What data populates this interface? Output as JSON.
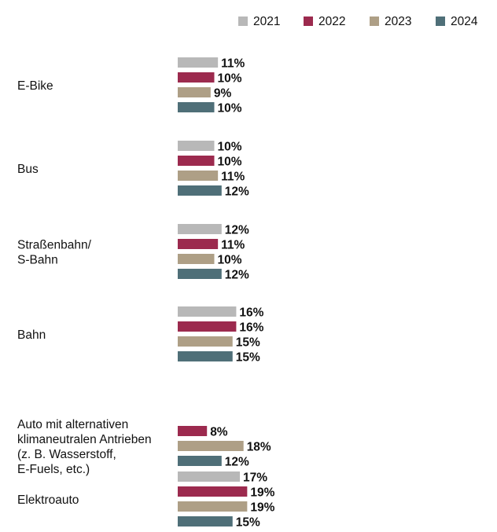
{
  "chart_data": {
    "type": "bar",
    "orientation": "horizontal",
    "legend_position": "top-right",
    "grid": false,
    "categories": [
      [
        "E-Bike"
      ],
      [
        "Bus"
      ],
      [
        "Straßenbahn/",
        "S-Bahn"
      ],
      [
        "Bahn"
      ],
      [
        "Auto mit alternativen",
        "klimaneutralen Antrieben",
        "(z. B. Wasserstoff,",
        "E-Fuels, etc.)"
      ],
      [
        "Elektroauto"
      ]
    ],
    "series": [
      {
        "name": "2021",
        "color": "#b8b8b8",
        "values": [
          11,
          10,
          12,
          16,
          null,
          17
        ]
      },
      {
        "name": "2022",
        "color": "#9c2a4e",
        "values": [
          10,
          10,
          11,
          16,
          8,
          19
        ]
      },
      {
        "name": "2023",
        "color": "#ae9f86",
        "values": [
          9,
          11,
          10,
          15,
          18,
          19
        ]
      },
      {
        "name": "2024",
        "color": "#4f6f78",
        "values": [
          10,
          12,
          12,
          15,
          12,
          15
        ]
      }
    ],
    "value_suffix": "%"
  }
}
